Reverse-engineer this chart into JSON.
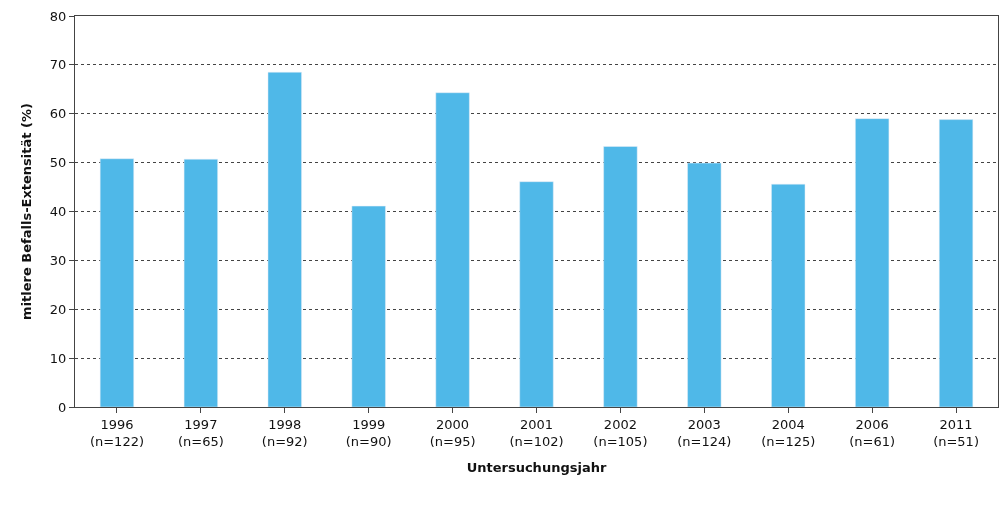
{
  "chart_data": {
    "type": "bar",
    "xlabel": "Untersuchungsjahr",
    "ylabel": "mitlere Befalls-Extensität (%)",
    "categories": [
      "1996\n(n=122)",
      "1997\n(n=65)",
      "1998\n(n=92)",
      "1999\n(n=90)",
      "2000\n(n=95)",
      "2001\n(n=102)",
      "2002\n(n=105)",
      "2003\n(n=124)",
      "2004\n(n=125)",
      "2006\n(n=61)",
      "2011\n(n=51)"
    ],
    "values": [
      50.8,
      50.7,
      68.5,
      41.1,
      64.3,
      46.1,
      53.3,
      49.9,
      45.6,
      59.0,
      58.8
    ],
    "color": "#4fb8e8",
    "ylim": [
      0,
      80
    ],
    "yticks": [
      0,
      10,
      20,
      30,
      40,
      50,
      60,
      70,
      80
    ],
    "grid": "y"
  }
}
